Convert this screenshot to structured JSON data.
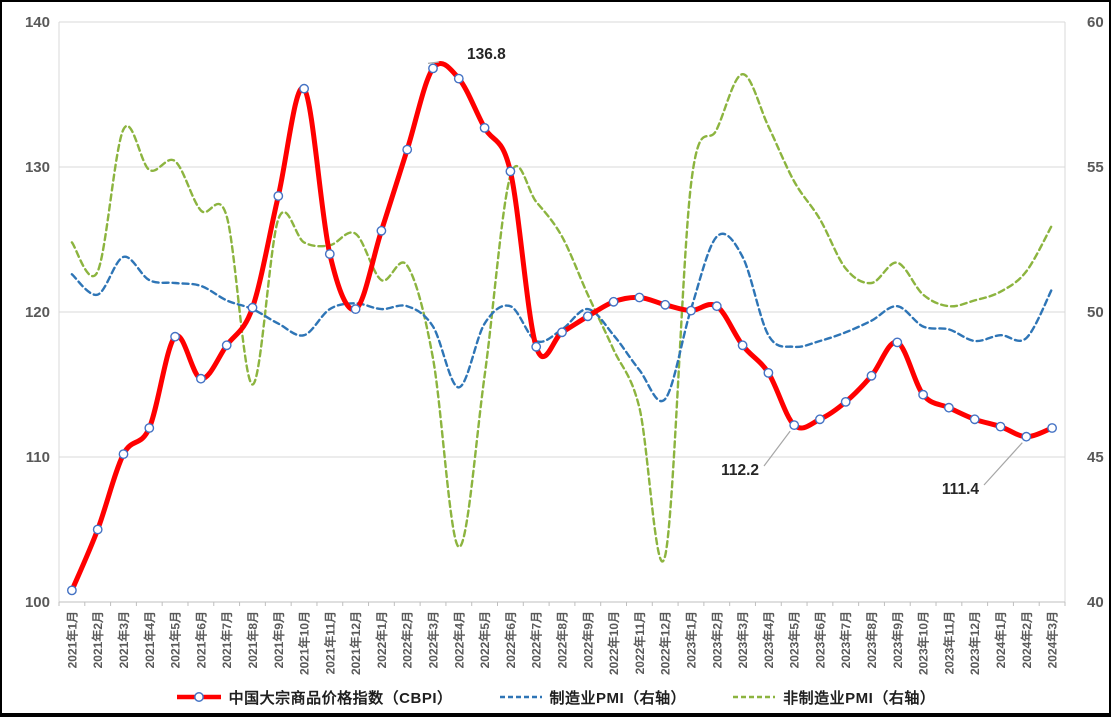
{
  "chart_data": {
    "type": "line",
    "title": "",
    "categories": [
      "2021年1月",
      "2021年2月",
      "2021年3月",
      "2021年4月",
      "2021年5月",
      "2021年6月",
      "2021年7月",
      "2021年8月",
      "2021年9月",
      "2021年10月",
      "2021年11月",
      "2021年12月",
      "2022年1月",
      "2022年2月",
      "2022年3月",
      "2022年4月",
      "2022年5月",
      "2022年6月",
      "2022年7月",
      "2022年8月",
      "2022年9月",
      "2022年10月",
      "2022年11月",
      "2022年12月",
      "2023年1月",
      "2023年2月",
      "2023年3月",
      "2023年4月",
      "2023年5月",
      "2023年6月",
      "2023年7月",
      "2023年8月",
      "2023年9月",
      "2023年10月",
      "2023年11月",
      "2023年12月",
      "2024年1月",
      "2024年2月",
      "2024年3月"
    ],
    "series": [
      {
        "name": "中国大宗商品价格指数（CBPI）",
        "axis": "left",
        "style": "solid",
        "marker": "circle",
        "color": "#FF0000",
        "marker_color": "#4472C4",
        "values": [
          100.8,
          105.0,
          110.2,
          112.0,
          118.3,
          115.4,
          117.7,
          120.3,
          128.0,
          135.4,
          124.0,
          120.2,
          125.6,
          131.2,
          136.8,
          136.1,
          132.7,
          129.7,
          117.6,
          118.6,
          119.7,
          120.7,
          121.0,
          120.5,
          120.1,
          120.4,
          117.7,
          115.8,
          112.2,
          112.6,
          113.8,
          115.6,
          117.9,
          114.3,
          113.4,
          112.6,
          112.1,
          111.4,
          112.0
        ]
      },
      {
        "name": "制造业PMI（右轴）",
        "axis": "right",
        "style": "dashed",
        "marker": "none",
        "color": "#2E75B6",
        "values": [
          51.3,
          50.6,
          51.9,
          51.1,
          51.0,
          50.9,
          50.4,
          50.1,
          49.6,
          49.2,
          50.1,
          50.3,
          50.1,
          50.2,
          49.5,
          47.4,
          49.6,
          50.2,
          49.0,
          49.4,
          50.1,
          49.2,
          48.0,
          47.0,
          50.1,
          52.6,
          51.9,
          49.2,
          48.8,
          49.0,
          49.3,
          49.7,
          50.2,
          49.5,
          49.4,
          49.0,
          49.2,
          49.1,
          50.8
        ]
      },
      {
        "name": "非制造业PMI（右轴）",
        "axis": "right",
        "style": "dashed",
        "marker": "none",
        "color": "#8CB43F",
        "values": [
          52.4,
          51.4,
          56.3,
          54.9,
          55.2,
          53.5,
          53.3,
          47.5,
          53.2,
          52.4,
          52.3,
          52.7,
          51.1,
          51.6,
          48.4,
          41.9,
          47.8,
          54.7,
          53.8,
          52.6,
          50.6,
          48.7,
          46.7,
          41.6,
          54.4,
          56.3,
          58.2,
          56.4,
          54.5,
          53.2,
          51.5,
          51.0,
          51.7,
          50.6,
          50.2,
          50.4,
          50.7,
          51.4,
          53.0
        ]
      }
    ],
    "left_axis": {
      "min": 100,
      "max": 140,
      "ticks": [
        100,
        110,
        120,
        130,
        140
      ]
    },
    "right_axis": {
      "min": 40,
      "max": 60,
      "ticks": [
        40,
        45,
        50,
        55,
        60
      ]
    },
    "grid": true,
    "legend_position": "bottom",
    "annotations": [
      {
        "text": "136.8",
        "category": "2022年3月",
        "series": 0
      },
      {
        "text": "112.2",
        "category": "2023年5月",
        "series": 0
      },
      {
        "text": "111.4",
        "category": "2024年2月",
        "series": 0
      }
    ]
  },
  "colors": {
    "gridline": "#D9D9D9",
    "axis_line": "#BFBFBF",
    "axis_text": "#595959",
    "annotation_text": "#262626",
    "leader_line": "#A6A6A6",
    "background": "#FFFFFF",
    "marker_fill": "#FFFFFF"
  }
}
